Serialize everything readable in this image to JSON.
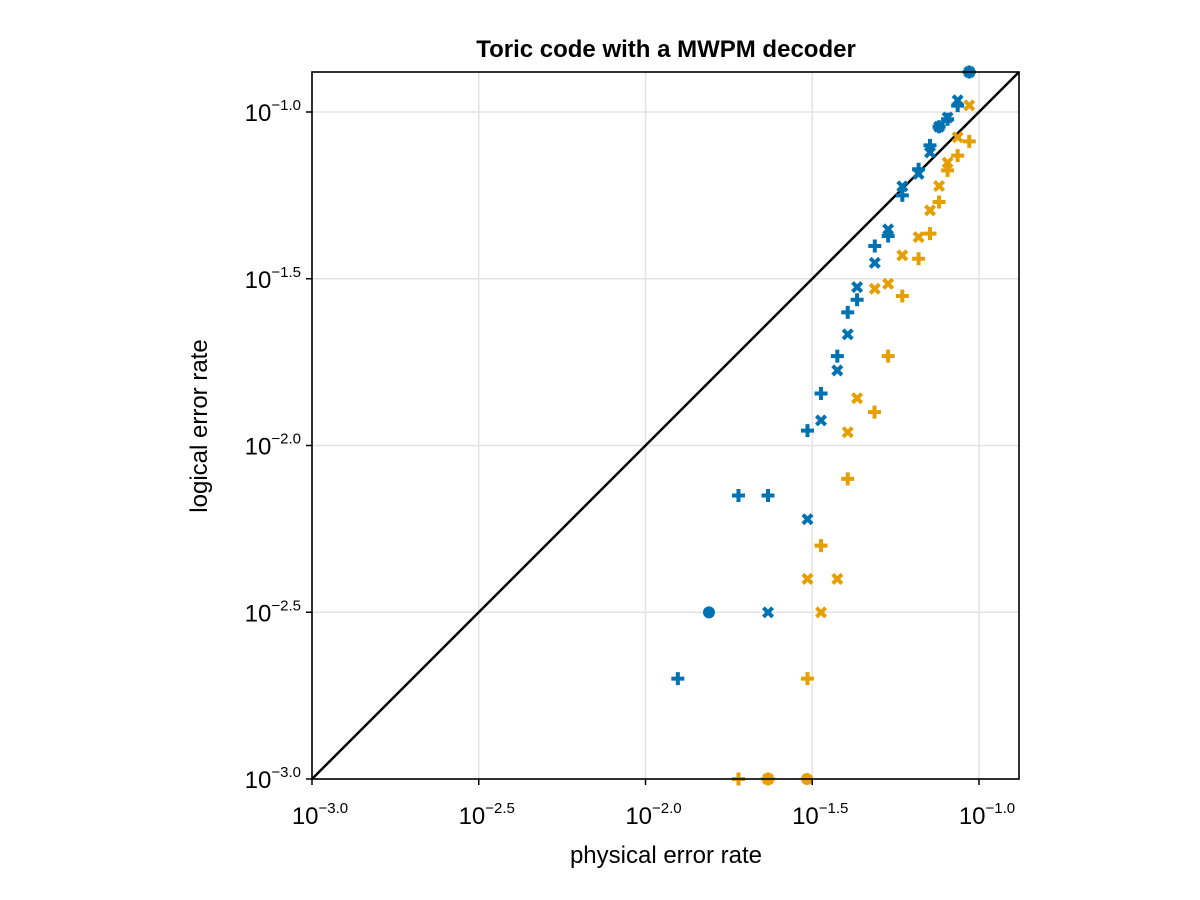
{
  "chart_data": {
    "type": "scatter",
    "title": "Toric code with a MWPM decoder",
    "xlabel": "physical error rate",
    "ylabel": "logical error rate",
    "xscale": "log10",
    "yscale": "log10",
    "xlim": [
      0.001,
      0.1318
    ],
    "ylim": [
      0.001,
      0.1318
    ],
    "grid": true,
    "legend": "none",
    "x_ticks": [
      {
        "base": "10",
        "exp": "−3.0",
        "value": 0.001
      },
      {
        "base": "10",
        "exp": "−2.5",
        "value": 0.003162
      },
      {
        "base": "10",
        "exp": "−2.0",
        "value": 0.01
      },
      {
        "base": "10",
        "exp": "−1.5",
        "value": 0.03162
      },
      {
        "base": "10",
        "exp": "−1.0",
        "value": 0.1
      }
    ],
    "y_ticks": [
      {
        "base": "10",
        "exp": "−3.0",
        "value": 0.001
      },
      {
        "base": "10",
        "exp": "−2.5",
        "value": 0.003162
      },
      {
        "base": "10",
        "exp": "−2.0",
        "value": 0.01
      },
      {
        "base": "10",
        "exp": "−1.5",
        "value": 0.03162
      },
      {
        "base": "10",
        "exp": "−1.0",
        "value": 0.1
      }
    ],
    "reference_line": {
      "x": [
        0.001,
        0.1318
      ],
      "y": [
        0.001,
        0.1318
      ],
      "color": "#000000"
    },
    "series": [
      {
        "color": "#0072b2",
        "marker": "circle",
        "x": [
          0.0155
        ],
        "y": [
          0.00316
        ]
      },
      {
        "color": "#0072b2",
        "marker": "plus",
        "x": [
          0.0125,
          0.019,
          0.0233,
          0.0306,
          0.0336,
          0.0376,
          0.0404,
          0.0431,
          0.0487,
          0.0534,
          0.0589,
          0.0659,
          0.0713,
          0.0759,
          0.0805,
          0.0863,
          0.0935
        ],
        "y": [
          0.002,
          0.00708,
          0.00708,
          0.01108,
          0.01432,
          0.01853,
          0.02507,
          0.02735,
          0.03963,
          0.04246,
          0.05622,
          0.06734,
          0.07944,
          0.09034,
          0.0951,
          0.10447,
          0.1318
        ]
      },
      {
        "color": "#0072b2",
        "marker": "cross",
        "x": [
          0.0233,
          0.0306,
          0.0336,
          0.0376,
          0.0404,
          0.0431,
          0.0487,
          0.0534,
          0.0589,
          0.0659,
          0.0713,
          0.0759,
          0.0805,
          0.0863,
          0.0935
        ],
        "y": [
          0.00316,
          0.00601,
          0.01189,
          0.01679,
          0.02154,
          0.02985,
          0.03529,
          0.04447,
          0.05985,
          0.06526,
          0.07563,
          0.09034,
          0.09624,
          0.10839,
          0.1318
        ]
      },
      {
        "color": "#e69f00",
        "marker": "circle",
        "x": [
          0.0305
        ],
        "y": [
          0.001
        ]
      },
      {
        "color": "#e69f00",
        "marker": "plus",
        "x": [
          0.019,
          0.0233,
          0.0306,
          0.0336,
          0.0404,
          0.0486,
          0.0534,
          0.0589,
          0.0659,
          0.0713,
          0.0759,
          0.0805,
          0.0863,
          0.0935
        ],
        "y": [
          0.001,
          0.001,
          0.002,
          0.00501,
          0.00794,
          0.01259,
          0.01853,
          0.02807,
          0.03631,
          0.04318,
          0.0537,
          0.06683,
          0.074,
          0.08165
        ]
      },
      {
        "color": "#e69f00",
        "marker": "cross",
        "x": [
          0.0233,
          0.0306,
          0.0336,
          0.0376,
          0.0404,
          0.0431,
          0.0487,
          0.0534,
          0.0589,
          0.0659,
          0.0713,
          0.0759,
          0.0805,
          0.0863,
          0.0935
        ],
        "y": [
          0.001,
          0.00398,
          0.00316,
          0.00398,
          0.01096,
          0.01386,
          0.02951,
          0.03053,
          0.03715,
          0.04216,
          0.0507,
          0.05998,
          0.0705,
          0.08397,
          0.1047
        ]
      }
    ]
  }
}
